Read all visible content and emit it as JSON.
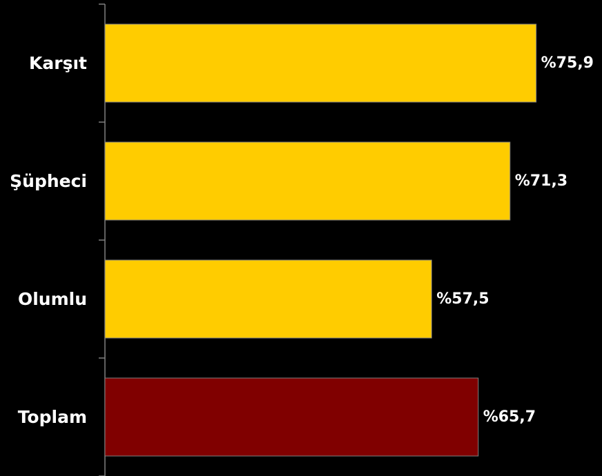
{
  "chart_data": {
    "type": "bar",
    "orientation": "horizontal",
    "categories": [
      "Karşıt",
      "Şüpheci",
      "Olumlu",
      "Toplam"
    ],
    "values": [
      75.9,
      71.3,
      57.5,
      65.7
    ],
    "value_labels": [
      "%75,9",
      "%71,3",
      "%57,5",
      "%65,7"
    ],
    "title": "",
    "xlabel": "",
    "ylabel": "",
    "xlim": [
      0,
      100
    ],
    "grid": false,
    "legend": "none",
    "colors": {
      "background": "#000000",
      "bar": "#FFCC00",
      "highlight_bar": "#800000",
      "axis": "#808080",
      "bar_border": "#808080",
      "text": "#ffffff"
    },
    "highlight_index": 3
  }
}
